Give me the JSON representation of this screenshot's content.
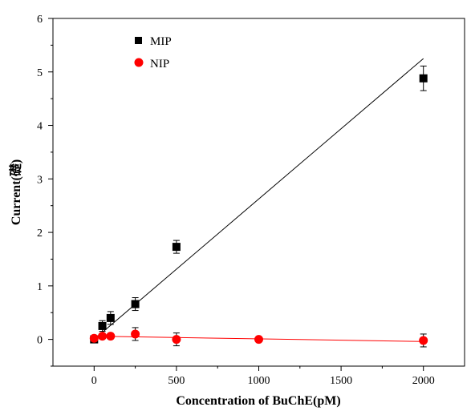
{
  "chart_data": {
    "type": "scatter",
    "xlabel": "Concentration of BuChE(pM)",
    "ylabel": "Current(礎)",
    "xlim": [
      -250,
      2250
    ],
    "ylim": [
      -0.5,
      6
    ],
    "x_ticks": [
      0,
      500,
      1000,
      1500,
      2000
    ],
    "y_ticks": [
      0,
      1,
      2,
      3,
      4,
      5,
      6
    ],
    "legend_position": "top-left",
    "grid": false,
    "series": [
      {
        "name": "MIP",
        "marker": "square",
        "color": "#000000",
        "points": [
          {
            "x": 0,
            "y": 0.0,
            "err": 0.05
          },
          {
            "x": 50,
            "y": 0.25,
            "err": 0.1
          },
          {
            "x": 100,
            "y": 0.4,
            "err": 0.12
          },
          {
            "x": 250,
            "y": 0.66,
            "err": 0.12
          },
          {
            "x": 500,
            "y": 1.73,
            "err": 0.12
          },
          {
            "x": 2000,
            "y": 4.88,
            "err": 0.23
          }
        ],
        "fit_line": {
          "x": [
            0,
            2000
          ],
          "y": [
            0.0,
            5.25
          ]
        }
      },
      {
        "name": "NIP",
        "marker": "circle",
        "color": "#ff0000",
        "points": [
          {
            "x": 0,
            "y": 0.02,
            "err": 0.05
          },
          {
            "x": 50,
            "y": 0.06,
            "err": 0.05
          },
          {
            "x": 100,
            "y": 0.06,
            "err": 0.05
          },
          {
            "x": 250,
            "y": 0.1,
            "err": 0.12
          },
          {
            "x": 500,
            "y": 0.0,
            "err": 0.12
          },
          {
            "x": 1000,
            "y": 0.0,
            "err": 0.03
          },
          {
            "x": 2000,
            "y": -0.02,
            "err": 0.12
          }
        ],
        "fit_line": {
          "x": [
            0,
            2000
          ],
          "y": [
            0.06,
            -0.04
          ]
        }
      }
    ]
  }
}
